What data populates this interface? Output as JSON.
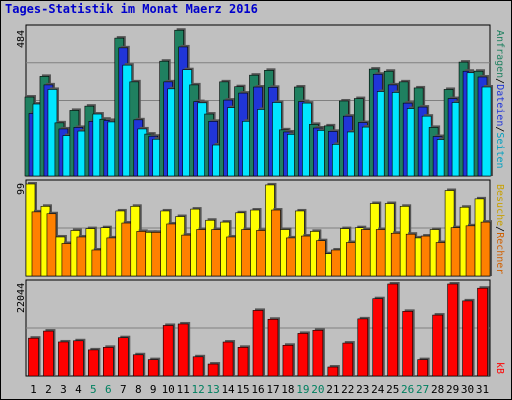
{
  "chart_data": {
    "type": "bar",
    "title": "Tages-Statistik im Monat Maerz 2016",
    "categories": [
      "1",
      "2",
      "3",
      "4",
      "5",
      "6",
      "7",
      "8",
      "9",
      "10",
      "11",
      "12",
      "13",
      "14",
      "15",
      "16",
      "17",
      "18",
      "19",
      "20",
      "21",
      "22",
      "23",
      "24",
      "25",
      "26",
      "27",
      "28",
      "29",
      "30",
      "31"
    ],
    "weekend_days": [
      "5",
      "6",
      "12",
      "13",
      "19",
      "20",
      "26",
      "27"
    ],
    "panels": [
      {
        "name": "top",
        "ytick": "484",
        "ylim": [
          0,
          484
        ],
        "series": [
          {
            "name": "Anfragen",
            "color": "#1f8060",
            "values": [
              260,
              328,
              175,
              216,
              230,
              187,
              454,
              310,
              138,
              378,
              480,
              300,
              204,
              310,
              294,
              332,
              348,
              152,
              293,
              170,
              165,
              247,
              255,
              352,
              345,
              310,
              290,
              160,
              285,
              375,
              345
            ]
          },
          {
            "name": "Dateien",
            "color": "#2035d8",
            "values": [
              206,
              300,
              155,
              160,
              180,
              183,
              422,
              185,
              131,
              310,
              425,
              245,
              180,
              250,
              273,
              293,
              292,
              145,
              245,
              158,
              147,
              197,
              176,
              335,
              300,
              240,
              227,
              130,
              255,
              345,
              326
            ]
          },
          {
            "name": "Seiten",
            "color": "#00e6ff",
            "values": [
              237,
              285,
              133,
              148,
              204,
              178,
              365,
              155,
              121,
              287,
              350,
              241,
              102,
              225,
              180,
              219,
              242,
              137,
              240,
              150,
              104,
              145,
              161,
              278,
              275,
              222,
              197,
              120,
              242,
              340,
              293
            ]
          }
        ]
      },
      {
        "name": "middle",
        "ytick": "99",
        "ylim": [
          0,
          99
        ],
        "series": [
          {
            "name": "Besuche",
            "color": "#ffff00",
            "values": [
              99,
              75,
              42,
              49,
              51,
              52,
              70,
              75,
              47,
              70,
              64,
              72,
              60,
              58,
              68,
              71,
              98,
              50,
              70,
              48,
              24,
              51,
              52,
              78,
              78,
              75,
              41,
              50,
              92,
              74,
              83
            ]
          },
          {
            "name": "Rechner",
            "color": "#ff8000",
            "values": [
              69,
              67,
              35,
              42,
              28,
              41,
              57,
              48,
              47,
              56,
              44,
              50,
              50,
              42,
              50,
              49,
              71,
              41,
              43,
              38,
              28,
              36,
              50,
              50,
              46,
              45,
              43,
              36,
              52,
              54,
              58
            ]
          }
        ]
      },
      {
        "name": "bottom",
        "ytick": "22044",
        "ylim": [
          0,
          22044
        ],
        "series": [
          {
            "name": "kB",
            "color": "#ff0000",
            "values": [
              9063,
              10763,
              8159,
              8440,
              6257,
              6864,
              9175,
              5084,
              3923,
              12110,
              12468,
              4602,
              2865,
              8141,
              6870,
              15719,
              13591,
              7361,
              10204,
              10956,
              2151,
              7892,
              13690,
              18522,
              22044,
              15488,
              3923,
              14598,
              22044,
              17998,
              21036
            ]
          }
        ]
      }
    ],
    "side_labels": [
      {
        "text": "Anfragen",
        "color": "#1f8060"
      },
      {
        "text": "/",
        "color": "#000000"
      },
      {
        "text": "Dateien",
        "color": "#2035d8"
      },
      {
        "text": "/",
        "color": "#000000"
      },
      {
        "text": "Seiten",
        "color": "#00a0c0"
      },
      {
        "text": "Besuche",
        "color": "#c8a000"
      },
      {
        "text": "/",
        "color": "#000000"
      },
      {
        "text": "Rechner",
        "color": "#d06000"
      },
      {
        "text": "kB",
        "color": "#ff0000"
      }
    ],
    "colors": {
      "background": "#c0c0c0",
      "panel_bg": "#c0c0c0",
      "grid": "#808080",
      "weekday_label": "#000000",
      "weekend_label": "#008060"
    }
  }
}
